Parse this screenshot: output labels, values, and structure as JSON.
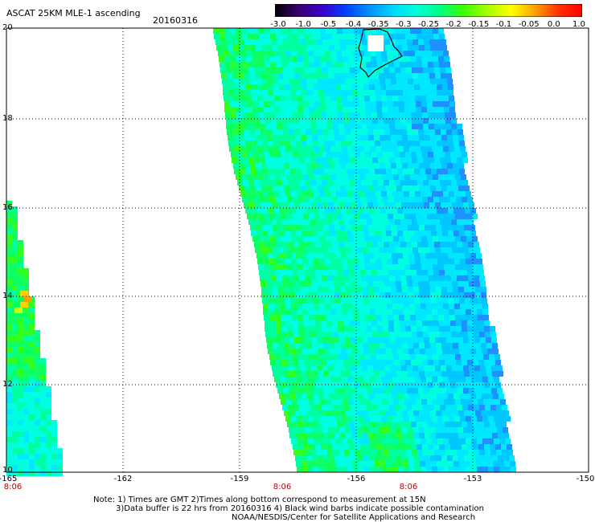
{
  "header": {
    "title": "ASCAT 25KM MLE-1 ascending",
    "date": "20160316"
  },
  "colorbar": {
    "labels": [
      "-3.0",
      "-1.0",
      "-0.5",
      "-0.4",
      "-0.35",
      "-0.3",
      "-0.25",
      "-0.2",
      "-0.15",
      "-0.1",
      "-0.05",
      "0.0",
      "1.0"
    ],
    "colors": [
      "#000000",
      "#3a0070",
      "#3a00c8",
      "#0040ff",
      "#0090ff",
      "#00d8ff",
      "#00ffd8",
      "#00ff80",
      "#40ff00",
      "#a8ff00",
      "#ffff00",
      "#ffa000",
      "#ff3000",
      "#ff0000"
    ]
  },
  "axes": {
    "lat_labels": [
      "20",
      "18",
      "16",
      "14",
      "12",
      "10"
    ],
    "lon_labels": [
      "-165",
      "-162",
      "-159",
      "-156",
      "-153",
      "-150"
    ],
    "time_labels": [
      "8:06",
      "8:06",
      "8:06"
    ]
  },
  "notes": {
    "line1": "Note: 1) Times are GMT 2)Times along bottom correspond to measurement at 15N",
    "line2": "3)Data buffer is 22 hrs from 20160316 4) Black wind barbs indicate possible contamination",
    "line3": "NOAA/NESDIS/Center for Satellite Applications and Research"
  }
}
